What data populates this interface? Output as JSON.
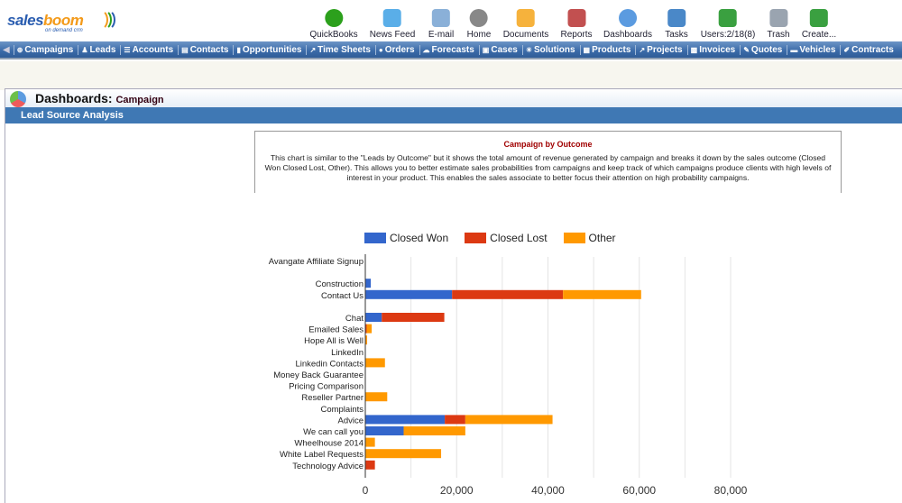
{
  "logo": {
    "brand": "salesboom",
    "tagline": "on demand crm"
  },
  "toolbar": [
    {
      "label": "QuickBooks",
      "icon": "quickbooks-icon",
      "color": "#2ca01c"
    },
    {
      "label": "News Feed",
      "icon": "tablet-icon",
      "color": "#5aaee8"
    },
    {
      "label": "E-mail",
      "icon": "email-icon",
      "color": "#8ab0d8"
    },
    {
      "label": "Home",
      "icon": "home-icon",
      "color": "#888888"
    },
    {
      "label": "Documents",
      "icon": "folder-icon",
      "color": "#f6b23c"
    },
    {
      "label": "Reports",
      "icon": "reports-icon",
      "color": "#c25050"
    },
    {
      "label": "Dashboards",
      "icon": "dashboard-pie-icon",
      "color": "#5b9be0"
    },
    {
      "label": "Tasks",
      "icon": "tasks-icon",
      "color": "#4a88c8"
    },
    {
      "label": "Users:2/18(8)",
      "icon": "users-icon",
      "color": "#3aa040"
    },
    {
      "label": "Trash",
      "icon": "trash-icon",
      "color": "#9aa4b0"
    },
    {
      "label": "Create...",
      "icon": "create-plus-icon",
      "color": "#3aa040"
    }
  ],
  "nav": [
    "Campaigns",
    "Leads",
    "Accounts",
    "Contacts",
    "Opportunities",
    "Time Sheets",
    "Orders",
    "Forecasts",
    "Cases",
    "Solutions",
    "Products",
    "Projects",
    "Invoices",
    "Quotes",
    "Vehicles",
    "Contracts"
  ],
  "page": {
    "title": "Dashboards:",
    "subtitle": "Campaign",
    "section": "Lead Source Analysis"
  },
  "description": {
    "title": "Campaign by Outcome",
    "text": "This chart is similar to the \"Leads by Outcome\" but it shows the total amount of revenue generated by campaign and breaks it down by the sales outcome (Closed Won Closed Lost, Other). This allows you to better estimate sales probabilities from campaigns and keep track of which campaigns produce clients with high levels of interest in your product. This enables the sales associate to better focus their attention on high probability campaigns."
  },
  "chart_data": {
    "type": "bar",
    "orientation": "horizontal",
    "stacked": true,
    "title": "",
    "xlabel": "",
    "ylabel": "",
    "xlim": [
      0,
      80000
    ],
    "xticks": [
      0,
      20000,
      40000,
      60000,
      80000
    ],
    "xtick_labels": [
      "0",
      "20,000",
      "40,000",
      "60,000",
      "80,000"
    ],
    "grid": true,
    "legend_position": "top",
    "categories": [
      "Avangate Affiliate Signup",
      "",
      "Construction",
      "Contact Us",
      "",
      "Chat",
      "Emailed Sales",
      "Hope All is Well",
      "LinkedIn",
      "Linkedin Contacts",
      "Money Back Guarantee",
      "Pricing Comparison",
      "Reseller Partner",
      "Complaints",
      "Advice",
      "We can call you",
      "Wheelhouse 2014",
      "White Label Requests",
      "Technology Advice"
    ],
    "series": [
      {
        "name": "Closed Won",
        "color": "#3366cc",
        "values": [
          0,
          0,
          1200,
          19000,
          0,
          3600,
          0,
          0,
          0,
          0,
          0,
          0,
          0,
          0,
          17400,
          8400,
          0,
          0,
          0
        ]
      },
      {
        "name": "Closed Lost",
        "color": "#dc3912",
        "values": [
          0,
          0,
          0,
          24300,
          0,
          13700,
          300,
          0,
          0,
          0,
          0,
          0,
          0,
          0,
          4500,
          0,
          0,
          0,
          2100
        ]
      },
      {
        "name": "Other",
        "color": "#ff9900",
        "values": [
          0,
          0,
          0,
          17100,
          0,
          0,
          1100,
          400,
          0,
          4300,
          0,
          0,
          4800,
          0,
          19100,
          13500,
          2100,
          16600,
          0
        ]
      }
    ]
  }
}
